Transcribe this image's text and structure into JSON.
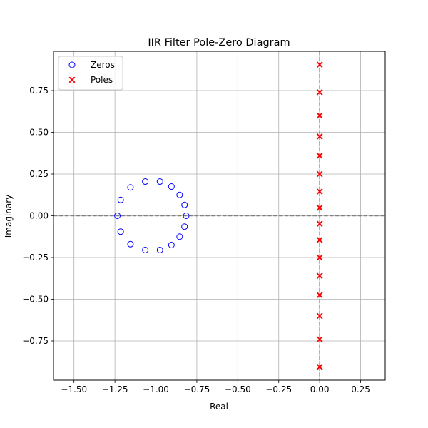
{
  "chart_data": {
    "type": "scatter",
    "title": "IIR Filter Pole-Zero Diagram",
    "xlabel": "Real",
    "ylabel": "Imaginary",
    "xlim": [
      -1.625,
      0.4
    ],
    "ylim": [
      -0.985,
      0.985
    ],
    "xticks": [
      -1.5,
      -1.25,
      -1.0,
      -0.75,
      -0.5,
      -0.25,
      0.0,
      0.25
    ],
    "xtick_labels": [
      "−1.50",
      "−1.25",
      "−1.00",
      "−0.75",
      "−0.50",
      "−0.25",
      "0.00",
      "0.25"
    ],
    "yticks": [
      0.75,
      0.5,
      0.25,
      0.0,
      -0.25,
      -0.5,
      -0.75
    ],
    "ytick_labels": [
      "0.75",
      "0.50",
      "0.25",
      "0.00",
      "−0.25",
      "−0.50",
      "−0.75"
    ],
    "grid": true,
    "legend_position": "top-left",
    "reference_lines": [
      {
        "orientation": "horizontal",
        "value": 0.0,
        "style": "dashed",
        "color": "#808080"
      },
      {
        "orientation": "vertical",
        "value": 0.0,
        "style": "dashed",
        "color": "#808080"
      }
    ],
    "series": [
      {
        "name": "Zeros",
        "marker": "circle-open",
        "color": "#0000ff",
        "points": [
          [
            -1.235,
            0.0
          ],
          [
            -1.215,
            0.095
          ],
          [
            -1.155,
            0.17
          ],
          [
            -1.065,
            0.205
          ],
          [
            -0.975,
            0.205
          ],
          [
            -0.905,
            0.175
          ],
          [
            -0.855,
            0.125
          ],
          [
            -0.825,
            0.065
          ],
          [
            -0.815,
            0.0
          ],
          [
            -0.825,
            -0.065
          ],
          [
            -0.855,
            -0.125
          ],
          [
            -0.905,
            -0.175
          ],
          [
            -0.975,
            -0.205
          ],
          [
            -1.065,
            -0.205
          ],
          [
            -1.155,
            -0.17
          ],
          [
            -1.215,
            -0.095
          ]
        ]
      },
      {
        "name": "Poles",
        "marker": "x",
        "color": "#ff0000",
        "points": [
          [
            0.0,
            0.905
          ],
          [
            0.0,
            0.74
          ],
          [
            0.0,
            0.6
          ],
          [
            0.0,
            0.475
          ],
          [
            0.0,
            0.36
          ],
          [
            0.0,
            0.25
          ],
          [
            0.0,
            0.145
          ],
          [
            0.0,
            0.048
          ],
          [
            0.0,
            -0.048
          ],
          [
            0.0,
            -0.145
          ],
          [
            0.0,
            -0.25
          ],
          [
            0.0,
            -0.36
          ],
          [
            0.0,
            -0.475
          ],
          [
            0.0,
            -0.6
          ],
          [
            0.0,
            -0.74
          ],
          [
            0.0,
            -0.905
          ]
        ]
      }
    ]
  }
}
